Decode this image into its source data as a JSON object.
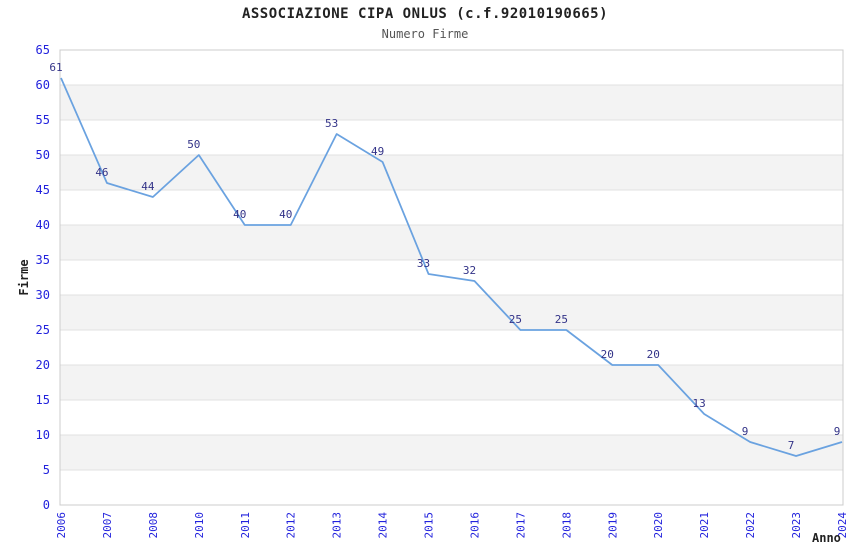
{
  "title": "ASSOCIAZIONE CIPA ONLUS (c.f.92010190665)",
  "subtitle": "Numero Firme",
  "chart_data": {
    "type": "line",
    "categories": [
      "2006",
      "2007",
      "2008",
      "2010",
      "2011",
      "2012",
      "2013",
      "2014",
      "2015",
      "2016",
      "2017",
      "2018",
      "2019",
      "2020",
      "2021",
      "2022",
      "2023",
      "2024"
    ],
    "values": [
      61,
      46,
      44,
      50,
      40,
      40,
      53,
      49,
      33,
      32,
      25,
      25,
      20,
      20,
      13,
      9,
      7,
      9
    ],
    "title": "ASSOCIAZIONE CIPA ONLUS (c.f.92010190665)",
    "subtitle": "Numero Firme",
    "xlabel": "Anno",
    "ylabel": "Firme",
    "ylim": [
      0,
      65
    ],
    "ytick_step": 5,
    "yticks": [
      0,
      5,
      10,
      15,
      20,
      25,
      30,
      35,
      40,
      45,
      50,
      55,
      60,
      65
    ],
    "grid": "horizontal",
    "alternating_bands": true,
    "show_point_labels": true,
    "legend": "none",
    "colors": {
      "line": "#6aa2e0",
      "tick_label": "#2222dd",
      "point_label": "#333388",
      "band": "#f3f3f3",
      "gridline": "#e0e0e0",
      "border": "#cccccc",
      "title": "#222222",
      "subtitle": "#555555",
      "axis_title": "#222222",
      "background": "#ffffff"
    }
  }
}
